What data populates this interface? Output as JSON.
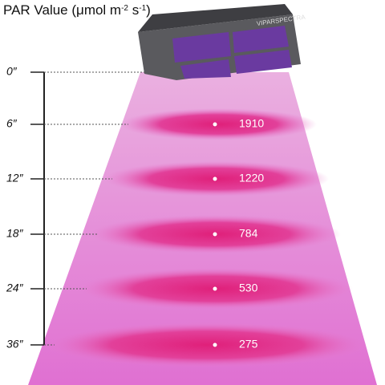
{
  "title": {
    "main": "PAR Value (μmol m",
    "sup1": "-2",
    "mid": " s",
    "sup2": "-1",
    "end": ")"
  },
  "device": {
    "brand": "VIPARSPECTRA"
  },
  "levels": [
    {
      "distance": "0″"
    },
    {
      "distance": "6″",
      "par": "1910"
    },
    {
      "distance": "12″",
      "par": "1220"
    },
    {
      "distance": "18″",
      "par": "784"
    },
    {
      "distance": "24″",
      "par": "530"
    },
    {
      "distance": "36″",
      "par": "275"
    }
  ]
}
